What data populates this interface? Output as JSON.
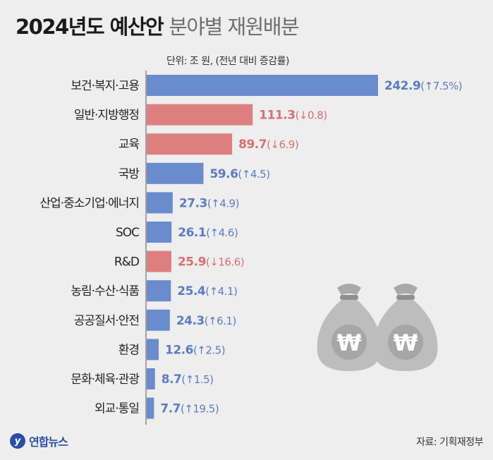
{
  "title": {
    "main": "2024년도 예산안",
    "sub": "분야별 재원배분"
  },
  "unit_note": "단위: 조 원, (전년 대비 증감률)",
  "source": "자료: 기획재정부",
  "logo_text": "연합뉴스",
  "logo_mark": "y",
  "colors": {
    "increase": "#6a8bcc",
    "decrease": "#dd7f7f",
    "increase_text": "#5a7cc0",
    "decrease_text": "#d67070",
    "bag": "#bdbdbd",
    "bag_dark": "#9a9a9a"
  },
  "chart_data": {
    "type": "bar",
    "orientation": "horizontal",
    "title": "2024년도 예산안 분야별 재원배분",
    "unit": "조 원",
    "categories": [
      "보건·복지·고용",
      "일반·지방행정",
      "교육",
      "국방",
      "산업·중소기업·에너지",
      "SOC",
      "R&D",
      "농림·수산·식품",
      "공공질서·안전",
      "환경",
      "문화·체육·관광",
      "외교·통일"
    ],
    "values": [
      242.9,
      111.3,
      89.7,
      59.6,
      27.3,
      26.1,
      25.9,
      25.4,
      24.3,
      12.6,
      8.7,
      7.7
    ],
    "changes": [
      "(↑7.5%)",
      "(↓0.8)",
      "(↓6.9)",
      "(↑4.5)",
      "(↑4.9)",
      "(↑4.6)",
      "(↓16.6)",
      "(↑4.1)",
      "(↑6.1)",
      "(↑2.5)",
      "(↑1.5)",
      "(↑19.5)"
    ],
    "direction": [
      "up",
      "down",
      "down",
      "up",
      "up",
      "up",
      "down",
      "up",
      "up",
      "up",
      "up",
      "up"
    ],
    "xlim": [
      0,
      242.9
    ]
  }
}
